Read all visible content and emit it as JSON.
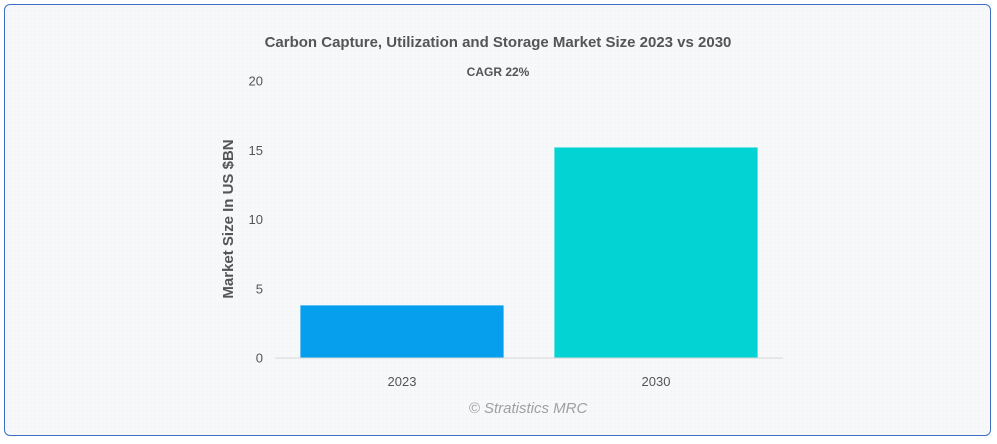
{
  "chart_data": {
    "type": "bar",
    "title": "Carbon Capture, Utilization and Storage Market Size 2023 vs 2030",
    "subtitle": "CAGR 22%",
    "xlabel": "",
    "ylabel": "Market Size In US $BN",
    "categories": [
      "2023",
      "2030"
    ],
    "values": [
      3.8,
      15.2
    ],
    "colors": [
      "#069fed",
      "#03d3d3"
    ],
    "ylim": [
      0,
      20
    ],
    "yticks": [
      0,
      5,
      10,
      15,
      20
    ],
    "grid": false,
    "legend": "none"
  },
  "credit": "© Stratistics MRC"
}
